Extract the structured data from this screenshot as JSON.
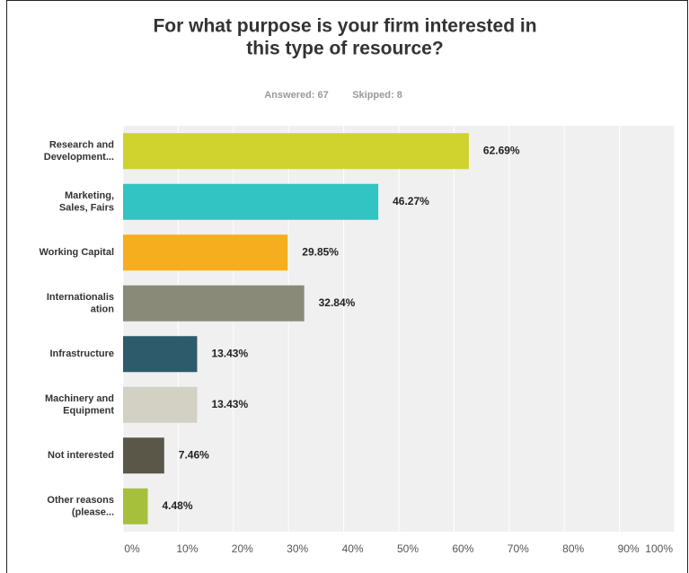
{
  "chart_data": {
    "type": "bar",
    "orientation": "horizontal",
    "title": "For what purpose is your firm interested in\nthis type of resource?",
    "answered": "Answered: 67",
    "skipped": "Skipped: 8",
    "categories": [
      "Research and\nDevelopment...",
      "Marketing,\nSales, Fairs",
      "Working Capital",
      "Internationalis\nation",
      "Infrastructure",
      "Machinery and\nEquipment",
      "Not interested",
      "Other reasons\n(please..."
    ],
    "values": [
      62.69,
      46.27,
      29.85,
      32.84,
      13.43,
      13.43,
      7.46,
      4.48
    ],
    "value_labels": [
      "62.69%",
      "46.27%",
      "29.85%",
      "32.84%",
      "13.43%",
      "13.43%",
      "7.46%",
      "4.48%"
    ],
    "colors": [
      "#d0d22d",
      "#32c3c3",
      "#f6ae1f",
      "#8a8a78",
      "#2d5b6b",
      "#d2d1c4",
      "#5a5748",
      "#a6c03c"
    ],
    "xlim": [
      0,
      100
    ],
    "xticks": [
      {
        "value": 0,
        "label": "0%"
      },
      {
        "value": 10,
        "label": "10%"
      },
      {
        "value": 20,
        "label": "20%"
      },
      {
        "value": 30,
        "label": "30%"
      },
      {
        "value": 40,
        "label": "40%"
      },
      {
        "value": 50,
        "label": "50%"
      },
      {
        "value": 60,
        "label": "60%"
      },
      {
        "value": 70,
        "label": "70%"
      },
      {
        "value": 80,
        "label": "80%"
      },
      {
        "value": 90,
        "label": "90%"
      },
      {
        "value": 100,
        "label": "100%"
      }
    ],
    "grid": true
  }
}
